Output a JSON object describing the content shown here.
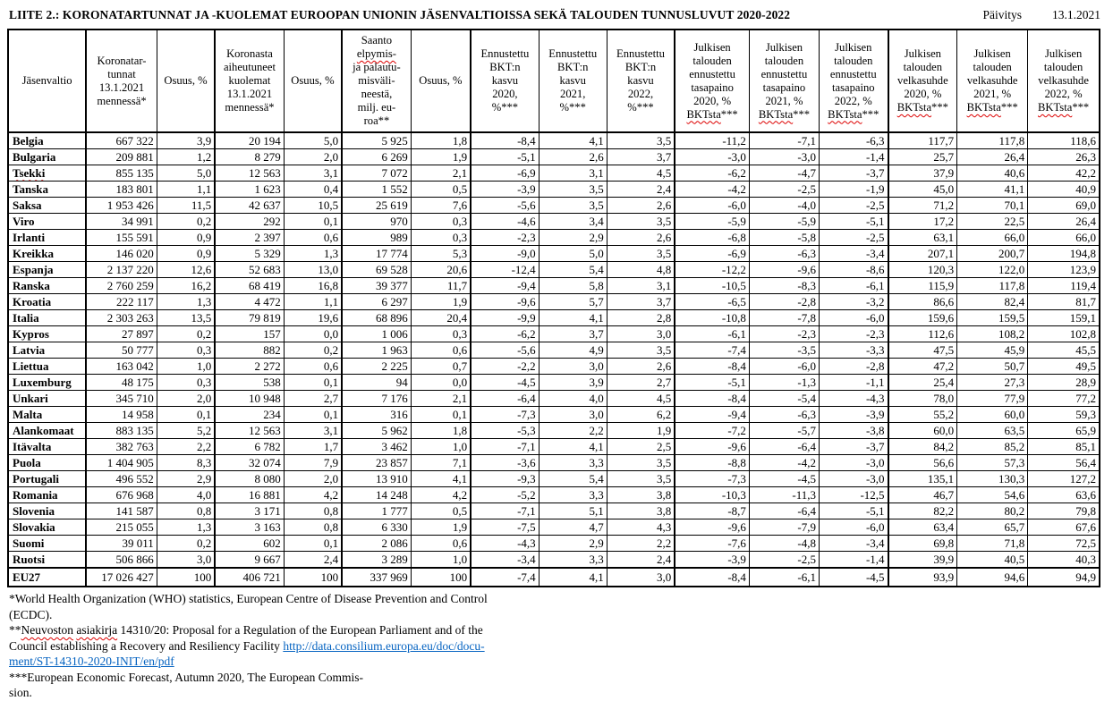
{
  "header": {
    "title": "LIITE 2.: KORONATARTUNNAT JA -KUOLEMAT EUROOPAN UNIONIN JÄSENVALTIOISSA SEKÄ TALOUDEN TUNNUSLUVUT 2020-2022",
    "update_label": "Päivitys",
    "update_date": "13.1.2021"
  },
  "table": {
    "headers": [
      {
        "parts": [
          {
            "t": "Jäsenvaltio"
          }
        ]
      },
      {
        "parts": [
          {
            "t": "Koronatar-\ntunnat\n13.1.2021\nmennessä*"
          }
        ]
      },
      {
        "parts": [
          {
            "t": "Osuus, %"
          }
        ]
      },
      {
        "parts": [
          {
            "t": "Koronasta\naiheutuneet\nkuolemat\n13.1.2021\nmennessä*"
          }
        ]
      },
      {
        "parts": [
          {
            "t": "Osuus, %"
          }
        ]
      },
      {
        "parts": [
          {
            "t": "Saanto\n"
          },
          {
            "t": "elpymis-",
            "sq": true
          },
          {
            "t": "\nja palautu-\nmisväli-\nneestä,\nmilj. eu-\nroa**"
          }
        ]
      },
      {
        "parts": [
          {
            "t": "Osuus, %"
          }
        ]
      },
      {
        "parts": [
          {
            "t": "Ennustettu\nBKT:n\nkasvu\n2020,\n%***"
          }
        ]
      },
      {
        "parts": [
          {
            "t": "Ennustettu\nBKT:n\nkasvu\n2021,\n%***"
          }
        ]
      },
      {
        "parts": [
          {
            "t": "Ennustettu\nBKT:n\nkasvu\n2022,\n%***"
          }
        ]
      },
      {
        "parts": [
          {
            "t": "Julkisen\ntalouden\nennustettu\ntasapaino\n2020, %\n"
          },
          {
            "t": "BKTsta",
            "sq": true
          },
          {
            "t": "***"
          }
        ]
      },
      {
        "parts": [
          {
            "t": "Julkisen\ntalouden\nennustettu\ntasapaino\n2021, %\n"
          },
          {
            "t": "BKTsta",
            "sq": true
          },
          {
            "t": "***"
          }
        ]
      },
      {
        "parts": [
          {
            "t": "Julkisen\ntalouden\nennustettu\ntasapaino\n2022, %\n"
          },
          {
            "t": "BKTsta",
            "sq": true
          },
          {
            "t": "***"
          }
        ]
      },
      {
        "parts": [
          {
            "t": "Julkisen\ntalouden\nvelkasuhde\n2020, %\n"
          },
          {
            "t": "BKTsta",
            "sq": true
          },
          {
            "t": "***"
          }
        ]
      },
      {
        "parts": [
          {
            "t": "Julkisen\ntalouden\nvelkasuhde\n2021, %\n"
          },
          {
            "t": "BKTsta",
            "sq": true
          },
          {
            "t": "***"
          }
        ]
      },
      {
        "parts": [
          {
            "t": "Julkisen\ntalouden\nvelkasuhde\n2022, %\n"
          },
          {
            "t": "BKTsta",
            "sq": true
          },
          {
            "t": "***"
          }
        ]
      }
    ],
    "rows": [
      {
        "name": "Belgia",
        "values": [
          "667 322",
          "3,9",
          "20 194",
          "5,0",
          "5 925",
          "1,8",
          "-8,4",
          "4,1",
          "3,5",
          "-11,2",
          "-7,1",
          "-6,3",
          "117,7",
          "117,8",
          "118,6"
        ]
      },
      {
        "name": "Bulgaria",
        "values": [
          "209 881",
          "1,2",
          "8 279",
          "2,0",
          "6 269",
          "1,9",
          "-5,1",
          "2,6",
          "3,7",
          "-3,0",
          "-3,0",
          "-1,4",
          "25,7",
          "26,4",
          "26,3"
        ]
      },
      {
        "name": "Tsekki",
        "sq": true,
        "values": [
          "855 135",
          "5,0",
          "12 563",
          "3,1",
          "7 072",
          "2,1",
          "-6,9",
          "3,1",
          "4,5",
          "-6,2",
          "-4,7",
          "-3,7",
          "37,9",
          "40,6",
          "42,2"
        ]
      },
      {
        "name": "Tanska",
        "values": [
          "183 801",
          "1,1",
          "1 623",
          "0,4",
          "1 552",
          "0,5",
          "-3,9",
          "3,5",
          "2,4",
          "-4,2",
          "-2,5",
          "-1,9",
          "45,0",
          "41,1",
          "40,9"
        ]
      },
      {
        "name": "Saksa",
        "values": [
          "1 953 426",
          "11,5",
          "42 637",
          "10,5",
          "25 619",
          "7,6",
          "-5,6",
          "3,5",
          "2,6",
          "-6,0",
          "-4,0",
          "-2,5",
          "71,2",
          "70,1",
          "69,0"
        ]
      },
      {
        "name": "Viro",
        "values": [
          "34 991",
          "0,2",
          "292",
          "0,1",
          "970",
          "0,3",
          "-4,6",
          "3,4",
          "3,5",
          "-5,9",
          "-5,9",
          "-5,1",
          "17,2",
          "22,5",
          "26,4"
        ]
      },
      {
        "name": "Irlanti",
        "values": [
          "155 591",
          "0,9",
          "2 397",
          "0,6",
          "989",
          "0,3",
          "-2,3",
          "2,9",
          "2,6",
          "-6,8",
          "-5,8",
          "-2,5",
          "63,1",
          "66,0",
          "66,0"
        ]
      },
      {
        "name": "Kreikka",
        "values": [
          "146 020",
          "0,9",
          "5 329",
          "1,3",
          "17 774",
          "5,3",
          "-9,0",
          "5,0",
          "3,5",
          "-6,9",
          "-6,3",
          "-3,4",
          "207,1",
          "200,7",
          "194,8"
        ]
      },
      {
        "name": "Espanja",
        "values": [
          "2 137 220",
          "12,6",
          "52 683",
          "13,0",
          "69 528",
          "20,6",
          "-12,4",
          "5,4",
          "4,8",
          "-12,2",
          "-9,6",
          "-8,6",
          "120,3",
          "122,0",
          "123,9"
        ]
      },
      {
        "name": "Ranska",
        "values": [
          "2 760 259",
          "16,2",
          "68 419",
          "16,8",
          "39 377",
          "11,7",
          "-9,4",
          "5,8",
          "3,1",
          "-10,5",
          "-8,3",
          "-6,1",
          "115,9",
          "117,8",
          "119,4"
        ]
      },
      {
        "name": "Kroatia",
        "values": [
          "222 117",
          "1,3",
          "4 472",
          "1,1",
          "6 297",
          "1,9",
          "-9,6",
          "5,7",
          "3,7",
          "-6,5",
          "-2,8",
          "-3,2",
          "86,6",
          "82,4",
          "81,7"
        ]
      },
      {
        "name": "Italia",
        "values": [
          "2 303 263",
          "13,5",
          "79 819",
          "19,6",
          "68 896",
          "20,4",
          "-9,9",
          "4,1",
          "2,8",
          "-10,8",
          "-7,8",
          "-6,0",
          "159,6",
          "159,5",
          "159,1"
        ]
      },
      {
        "name": "Kypros",
        "values": [
          "27 897",
          "0,2",
          "157",
          "0,0",
          "1 006",
          "0,3",
          "-6,2",
          "3,7",
          "3,0",
          "-6,1",
          "-2,3",
          "-2,3",
          "112,6",
          "108,2",
          "102,8"
        ]
      },
      {
        "name": "Latvia",
        "values": [
          "50 777",
          "0,3",
          "882",
          "0,2",
          "1 963",
          "0,6",
          "-5,6",
          "4,9",
          "3,5",
          "-7,4",
          "-3,5",
          "-3,3",
          "47,5",
          "45,9",
          "45,5"
        ]
      },
      {
        "name": "Liettua",
        "values": [
          "163 042",
          "1,0",
          "2 272",
          "0,6",
          "2 225",
          "0,7",
          "-2,2",
          "3,0",
          "2,6",
          "-8,4",
          "-6,0",
          "-2,8",
          "47,2",
          "50,7",
          "49,5"
        ]
      },
      {
        "name": "Luxemburg",
        "values": [
          "48 175",
          "0,3",
          "538",
          "0,1",
          "94",
          "0,0",
          "-4,5",
          "3,9",
          "2,7",
          "-5,1",
          "-1,3",
          "-1,1",
          "25,4",
          "27,3",
          "28,9"
        ]
      },
      {
        "name": "Unkari",
        "values": [
          "345 710",
          "2,0",
          "10 948",
          "2,7",
          "7 176",
          "2,1",
          "-6,4",
          "4,0",
          "4,5",
          "-8,4",
          "-5,4",
          "-4,3",
          "78,0",
          "77,9",
          "77,2"
        ]
      },
      {
        "name": "Malta",
        "values": [
          "14 958",
          "0,1",
          "234",
          "0,1",
          "316",
          "0,1",
          "-7,3",
          "3,0",
          "6,2",
          "-9,4",
          "-6,3",
          "-3,9",
          "55,2",
          "60,0",
          "59,3"
        ]
      },
      {
        "name": "Alankomaat",
        "values": [
          "883 135",
          "5,2",
          "12 563",
          "3,1",
          "5 962",
          "1,8",
          "-5,3",
          "2,2",
          "1,9",
          "-7,2",
          "-5,7",
          "-3,8",
          "60,0",
          "63,5",
          "65,9"
        ]
      },
      {
        "name": "Itävalta",
        "values": [
          "382 763",
          "2,2",
          "6 782",
          "1,7",
          "3 462",
          "1,0",
          "-7,1",
          "4,1",
          "2,5",
          "-9,6",
          "-6,4",
          "-3,7",
          "84,2",
          "85,2",
          "85,1"
        ]
      },
      {
        "name": "Puola",
        "values": [
          "1 404 905",
          "8,3",
          "32 074",
          "7,9",
          "23 857",
          "7,1",
          "-3,6",
          "3,3",
          "3,5",
          "-8,8",
          "-4,2",
          "-3,0",
          "56,6",
          "57,3",
          "56,4"
        ]
      },
      {
        "name": "Portugali",
        "values": [
          "496 552",
          "2,9",
          "8 080",
          "2,0",
          "13 910",
          "4,1",
          "-9,3",
          "5,4",
          "3,5",
          "-7,3",
          "-4,5",
          "-3,0",
          "135,1",
          "130,3",
          "127,2"
        ]
      },
      {
        "name": "Romania",
        "values": [
          "676 968",
          "4,0",
          "16 881",
          "4,2",
          "14 248",
          "4,2",
          "-5,2",
          "3,3",
          "3,8",
          "-10,3",
          "-11,3",
          "-12,5",
          "46,7",
          "54,6",
          "63,6"
        ]
      },
      {
        "name": "Slovenia",
        "values": [
          "141 587",
          "0,8",
          "3 171",
          "0,8",
          "1 777",
          "0,5",
          "-7,1",
          "5,1",
          "3,8",
          "-8,7",
          "-6,4",
          "-5,1",
          "82,2",
          "80,2",
          "79,8"
        ]
      },
      {
        "name": "Slovakia",
        "values": [
          "215 055",
          "1,3",
          "3 163",
          "0,8",
          "6 330",
          "1,9",
          "-7,5",
          "4,7",
          "4,3",
          "-9,6",
          "-7,9",
          "-6,0",
          "63,4",
          "65,7",
          "67,6"
        ]
      },
      {
        "name": "Suomi",
        "values": [
          "39 011",
          "0,2",
          "602",
          "0,1",
          "2 086",
          "0,6",
          "-4,3",
          "2,9",
          "2,2",
          "-7,6",
          "-4,8",
          "-3,4",
          "69,8",
          "71,8",
          "72,5"
        ]
      },
      {
        "name": "Ruotsi",
        "values": [
          "506 866",
          "3,0",
          "9 667",
          "2,4",
          "3 289",
          "1,0",
          "-3,4",
          "3,3",
          "2,4",
          "-3,9",
          "-2,5",
          "-1,4",
          "39,9",
          "40,5",
          "40,3"
        ]
      }
    ],
    "total": {
      "name": "EU27",
      "values": [
        "17 026 427",
        "100",
        "406 721",
        "100",
        "337 969",
        "100",
        "-7,4",
        "4,1",
        "3,0",
        "-8,4",
        "-6,1",
        "-4,5",
        "93,9",
        "94,6",
        "94,9"
      ]
    }
  },
  "footnotes": {
    "fn1_l1": "*World Health Organization (WHO) statistics, European Centre of Disease Prevention and Control",
    "fn1_l2": "(ECDC).",
    "fn2_stars": "**",
    "fn2_w1": "Neuvoston",
    "fn2_w2": "asiakirja",
    "fn2_rest": " 14310/20: Proposal for a Regulation of the European Parliament and of the",
    "fn2_l2": "Council establishing a Recovery and Resiliency Facility ",
    "fn2_link1": "http://data.consilium.europa.eu/doc/docu-",
    "fn2_link2": "ment/ST-14310-2020-INIT/en/pdf",
    "fn3_l1": "***European Economic Forecast, Autumn 2020, The European Commis-",
    "fn3_l2": "sion."
  }
}
